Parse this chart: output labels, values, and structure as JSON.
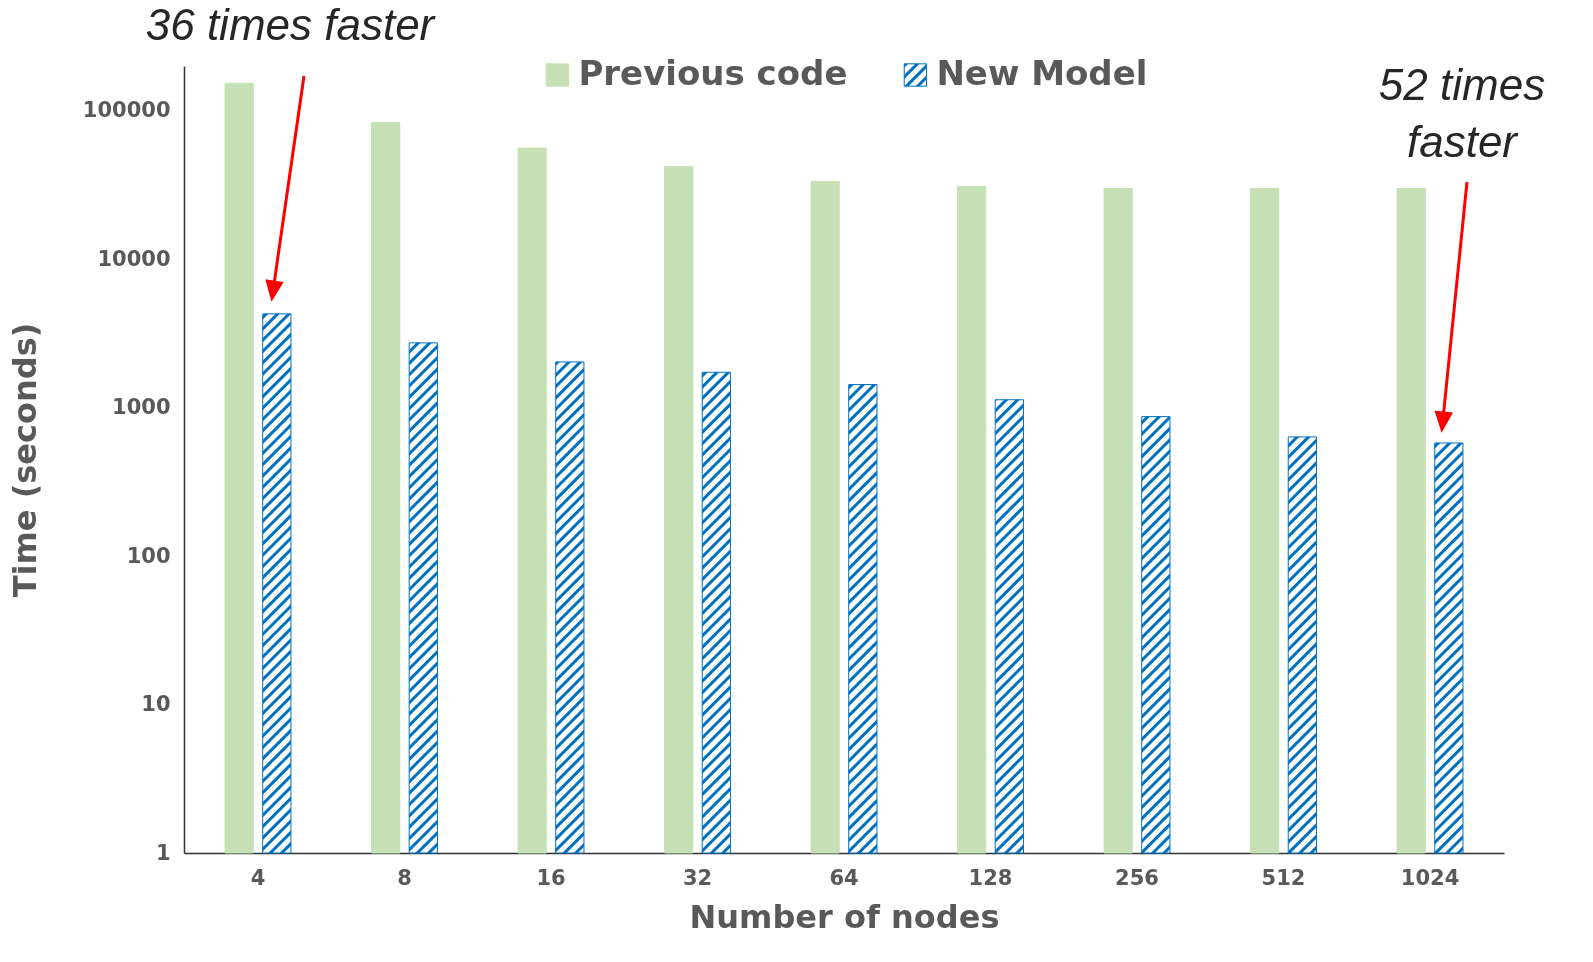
{
  "chart_data": {
    "type": "bar",
    "xlabel": "Number of nodes",
    "ylabel": "Time (seconds)",
    "categories": [
      "4",
      "8",
      "16",
      "32",
      "64",
      "128",
      "256",
      "512",
      "1024"
    ],
    "series": [
      {
        "name": "Previous code",
        "color": "#c5e0b4",
        "values": [
          153000,
          83000,
          56000,
          42000,
          33400,
          30800,
          29900,
          29900,
          29900
        ]
      },
      {
        "name": "New Model",
        "color": "#0070c0",
        "values": [
          4280,
          2730,
          2030,
          1730,
          1430,
          1130,
          870,
          635,
          578
        ]
      }
    ],
    "log": true,
    "ylim": [
      1,
      200000
    ],
    "yticks": [
      1,
      10,
      100,
      1000,
      10000,
      100000
    ],
    "legend": "top",
    "grid": false,
    "annotations": [
      "36 times faster",
      "52 times faster"
    ]
  }
}
